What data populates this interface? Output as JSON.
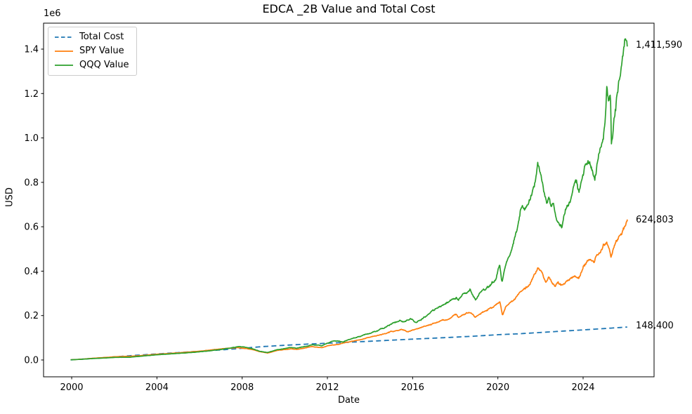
{
  "title": "EDCA _2B Value and Total Cost",
  "axes": {
    "xlabel": "Date",
    "ylabel": "USD",
    "offset_text": "1e6"
  },
  "chart_data": {
    "type": "line",
    "title": "EDCA _2B Value and Total Cost",
    "xlabel": "Date",
    "ylabel": "USD",
    "y_offset_text": "1e6",
    "grid": false,
    "xlim": [
      1998.68,
      2027.33
    ],
    "ylim": [
      -75846,
      1516924
    ],
    "xticks": [
      2000,
      2004,
      2008,
      2012,
      2016,
      2020,
      2024
    ],
    "yticks": [
      {
        "value": 0,
        "label": "0.0"
      },
      {
        "value": 200000,
        "label": "0.2"
      },
      {
        "value": 400000,
        "label": "0.4"
      },
      {
        "value": 600000,
        "label": "0.6"
      },
      {
        "value": 800000,
        "label": "0.8"
      },
      {
        "value": 1000000,
        "label": "1.0"
      },
      {
        "value": 1200000,
        "label": "1.2"
      },
      {
        "value": 1400000,
        "label": "1.4"
      }
    ],
    "legend": {
      "position": "upper left",
      "entries": [
        "Total Cost",
        "SPY Value",
        "QQQ Value"
      ]
    },
    "end_labels": [
      {
        "text": "1,411,590",
        "value": 1411590,
        "series": "QQQ Value"
      },
      {
        "text": "624,803",
        "value": 624803,
        "series": "SPY Value"
      },
      {
        "text": "148,400",
        "value": 148400,
        "series": "Total Cost"
      }
    ],
    "series": [
      {
        "name": "Total Cost",
        "color": "#1f77b4",
        "line_style": "dashed",
        "final_value": 148400,
        "points": [
          [
            1999.95,
            500
          ],
          [
            2001,
            6800
          ],
          [
            2002,
            13800
          ],
          [
            2003,
            21000
          ],
          [
            2004,
            27200
          ],
          [
            2005,
            33200
          ],
          [
            2006,
            39200
          ],
          [
            2007,
            45200
          ],
          [
            2008,
            52500
          ],
          [
            2009,
            60500
          ],
          [
            2010,
            66200
          ],
          [
            2011,
            71200
          ],
          [
            2012,
            75400
          ],
          [
            2013,
            79800
          ],
          [
            2014,
            84300
          ],
          [
            2015,
            89200
          ],
          [
            2016,
            93800
          ],
          [
            2017,
            98300
          ],
          [
            2018,
            102800
          ],
          [
            2019,
            107800
          ],
          [
            2020,
            113800
          ],
          [
            2021,
            118000
          ],
          [
            2022,
            123800
          ],
          [
            2023,
            129800
          ],
          [
            2024,
            135400
          ],
          [
            2025,
            141500
          ],
          [
            2026.07,
            148400
          ]
        ]
      },
      {
        "name": "SPY Value",
        "color": "#ff7f0e",
        "line_style": "solid",
        "final_value": 624803,
        "points": [
          [
            1999.95,
            700
          ],
          [
            2000.5,
            3800
          ],
          [
            2001,
            7800
          ],
          [
            2001.7,
            12000
          ],
          [
            2002,
            14500
          ],
          [
            2002.75,
            16500
          ],
          [
            2003.1,
            18500
          ],
          [
            2004,
            25800
          ],
          [
            2005,
            31800
          ],
          [
            2006,
            39500
          ],
          [
            2007,
            49500
          ],
          [
            2007.8,
            56500
          ],
          [
            2008.5,
            47000
          ],
          [
            2008.8,
            38000
          ],
          [
            2009.2,
            31500
          ],
          [
            2009.6,
            42000
          ],
          [
            2010.3,
            50000
          ],
          [
            2010.55,
            47500
          ],
          [
            2011.3,
            60000
          ],
          [
            2011.75,
            55500
          ],
          [
            2012,
            64000
          ],
          [
            2012.5,
            70000
          ],
          [
            2013,
            81000
          ],
          [
            2013.5,
            90000
          ],
          [
            2014,
            103000
          ],
          [
            2014.5,
            112000
          ],
          [
            2015,
            128000
          ],
          [
            2015.5,
            138000
          ],
          [
            2015.75,
            127000
          ],
          [
            2016.1,
            135000
          ],
          [
            2016.5,
            148000
          ],
          [
            2017,
            165000
          ],
          [
            2017.5,
            180000
          ],
          [
            2018.05,
            205000
          ],
          [
            2018.15,
            193000
          ],
          [
            2018.7,
            215000
          ],
          [
            2018.95,
            193000
          ],
          [
            2019.3,
            215000
          ],
          [
            2019.9,
            245000
          ],
          [
            2020.1,
            262000
          ],
          [
            2020.22,
            200000
          ],
          [
            2020.35,
            235000
          ],
          [
            2020.5,
            250000
          ],
          [
            2020.75,
            270000
          ],
          [
            2020.9,
            285000
          ],
          [
            2021.0,
            300000
          ],
          [
            2021.4,
            335000
          ],
          [
            2021.9,
            408000
          ],
          [
            2022.05,
            395000
          ],
          [
            2022.1,
            380000
          ],
          [
            2022.25,
            355000
          ],
          [
            2022.4,
            375000
          ],
          [
            2022.55,
            345000
          ],
          [
            2022.7,
            330000
          ],
          [
            2022.8,
            350000
          ],
          [
            2023.0,
            335000
          ],
          [
            2023.3,
            360000
          ],
          [
            2023.5,
            375000
          ],
          [
            2023.62,
            385000
          ],
          [
            2023.8,
            370000
          ],
          [
            2024.0,
            415000
          ],
          [
            2024.2,
            440000
          ],
          [
            2024.35,
            455000
          ],
          [
            2024.5,
            440000
          ],
          [
            2024.65,
            470000
          ],
          [
            2024.8,
            490000
          ],
          [
            2024.95,
            515000
          ],
          [
            2025.1,
            530000
          ],
          [
            2025.2,
            505000
          ],
          [
            2025.3,
            458000
          ],
          [
            2025.45,
            505000
          ],
          [
            2025.6,
            540000
          ],
          [
            2025.75,
            565000
          ],
          [
            2025.85,
            585000
          ],
          [
            2025.95,
            610000
          ],
          [
            2026.07,
            624803
          ]
        ]
      },
      {
        "name": "QQQ Value",
        "color": "#2ca02c",
        "line_style": "solid",
        "final_value": 1411590,
        "points": [
          [
            1999.95,
            700
          ],
          [
            2000.5,
            3300
          ],
          [
            2001,
            6500
          ],
          [
            2001.7,
            9500
          ],
          [
            2002,
            11500
          ],
          [
            2002.75,
            12500
          ],
          [
            2003.1,
            15500
          ],
          [
            2004,
            23500
          ],
          [
            2005,
            29500
          ],
          [
            2006,
            36500
          ],
          [
            2007,
            47000
          ],
          [
            2007.9,
            61000
          ],
          [
            2008.5,
            50000
          ],
          [
            2008.8,
            40000
          ],
          [
            2009.2,
            33500
          ],
          [
            2009.6,
            46000
          ],
          [
            2010.3,
            56000
          ],
          [
            2010.55,
            53000
          ],
          [
            2011.3,
            68000
          ],
          [
            2011.75,
            64000
          ],
          [
            2012,
            76000
          ],
          [
            2012.3,
            86000
          ],
          [
            2012.75,
            82000
          ],
          [
            2013,
            92000
          ],
          [
            2013.5,
            105000
          ],
          [
            2014,
            122000
          ],
          [
            2014.5,
            138000
          ],
          [
            2015,
            160000
          ],
          [
            2015.4,
            178000
          ],
          [
            2015.6,
            170000
          ],
          [
            2015.9,
            185000
          ],
          [
            2016.15,
            168000
          ],
          [
            2016.5,
            190000
          ],
          [
            2017,
            225000
          ],
          [
            2017.5,
            250000
          ],
          [
            2018.05,
            285000
          ],
          [
            2018.15,
            268000
          ],
          [
            2018.45,
            300000
          ],
          [
            2018.7,
            318000
          ],
          [
            2018.95,
            275000
          ],
          [
            2019.3,
            315000
          ],
          [
            2019.6,
            330000
          ],
          [
            2019.9,
            365000
          ],
          [
            2020.08,
            430000
          ],
          [
            2020.2,
            350000
          ],
          [
            2020.35,
            420000
          ],
          [
            2020.5,
            470000
          ],
          [
            2020.7,
            520000
          ],
          [
            2020.9,
            590000
          ],
          [
            2021.0,
            640000
          ],
          [
            2021.1,
            700000
          ],
          [
            2021.25,
            670000
          ],
          [
            2021.45,
            700000
          ],
          [
            2021.6,
            740000
          ],
          [
            2021.75,
            800000
          ],
          [
            2021.86,
            895000
          ],
          [
            2021.95,
            870000
          ],
          [
            2022.05,
            820000
          ],
          [
            2022.15,
            760000
          ],
          [
            2022.3,
            700000
          ],
          [
            2022.4,
            730000
          ],
          [
            2022.5,
            680000
          ],
          [
            2022.6,
            700000
          ],
          [
            2022.75,
            630000
          ],
          [
            2022.9,
            610000
          ],
          [
            2023.0,
            600000
          ],
          [
            2023.1,
            650000
          ],
          [
            2023.25,
            690000
          ],
          [
            2023.4,
            720000
          ],
          [
            2023.55,
            780000
          ],
          [
            2023.65,
            820000
          ],
          [
            2023.8,
            760000
          ],
          [
            2023.95,
            820000
          ],
          [
            2024.1,
            880000
          ],
          [
            2024.25,
            900000
          ],
          [
            2024.4,
            860000
          ],
          [
            2024.55,
            820000
          ],
          [
            2024.65,
            880000
          ],
          [
            2024.8,
            960000
          ],
          [
            2024.95,
            1010000
          ],
          [
            2025.05,
            1100000
          ],
          [
            2025.12,
            1230000
          ],
          [
            2025.2,
            1140000
          ],
          [
            2025.28,
            1190000
          ],
          [
            2025.33,
            970000
          ],
          [
            2025.45,
            1080000
          ],
          [
            2025.55,
            1150000
          ],
          [
            2025.65,
            1230000
          ],
          [
            2025.75,
            1280000
          ],
          [
            2025.85,
            1340000
          ],
          [
            2025.93,
            1420000
          ],
          [
            2025.98,
            1450000
          ],
          [
            2026.07,
            1411590
          ]
        ]
      }
    ]
  }
}
